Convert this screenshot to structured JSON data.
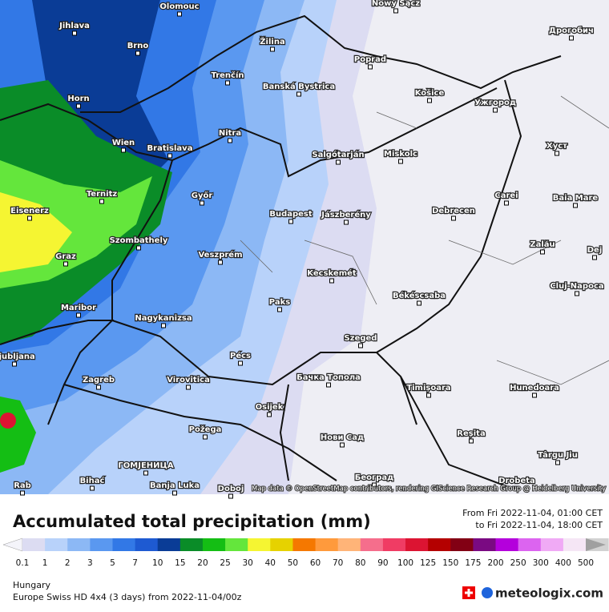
{
  "map": {
    "cities": [
      "Olomouc",
      "Nowy Sącz",
      "Jihlava",
      "Brno",
      "Žilina",
      "Дрогобич",
      "Poprad",
      "Trenčín",
      "Banská Bystrica",
      "Horn",
      "Košice",
      "Ужгород",
      "Nitra",
      "Wien",
      "Bratislava",
      "Salgótarján",
      "Miskolc",
      "Хуст",
      "Ternitz",
      "Győr",
      "Carei",
      "Baia Mare",
      "Eisenerz",
      "Budapest",
      "Jászberény",
      "Debrecen",
      "Szombathely",
      "Zalău",
      "Graz",
      "Veszprém",
      "Dej",
      "Kecskemét",
      "Cluj-Napoca",
      "Békéscsaba",
      "Paks",
      "Maribor",
      "Nagykanizsa",
      "Ljubljana",
      "Szeged",
      "Pécs",
      "Zagreb",
      "Virovitica",
      "Бачка Топола",
      "Timișoara",
      "Hunedoara",
      "Osijek",
      "Reșita",
      "Požega",
      "Нови Сад",
      "Târgu Jiu",
      "ГОМЈЕНИЦА",
      "Bihać",
      "Banja Luka",
      "Doboj",
      "Rab",
      "Београд",
      "Drobeta"
    ],
    "attribution": "Map data © OpenStreetMap contributors, rendering GIScience Research Group @ Heidelberg University"
  },
  "header": {
    "title": "Accumulated total precipitation (mm)",
    "from": "From Fri 2022-11-04, 01:00 CET",
    "to": "to Fri 2022-11-04, 18:00 CET"
  },
  "legend": {
    "values": [
      0.1,
      1,
      2,
      3,
      5,
      7,
      10,
      15,
      20,
      25,
      30,
      40,
      50,
      60,
      70,
      80,
      90,
      100,
      125,
      150,
      175,
      200,
      250,
      300,
      400,
      500
    ],
    "colors": [
      "#f4f4fa",
      "#dcdcf2",
      "#b8d2fa",
      "#8cb8f5",
      "#5a98f0",
      "#3278e6",
      "#1e5ad2",
      "#0a3c96",
      "#0a8c28",
      "#14be14",
      "#64e63c",
      "#f5f532",
      "#e6d200",
      "#f57800",
      "#ff9a3c",
      "#ffb478",
      "#f56e8c",
      "#f03c64",
      "#dc1432",
      "#b40000",
      "#820014",
      "#7a0a82",
      "#b400dc",
      "#dc64f0",
      "#f0aaf5",
      "#f5e6f5",
      "#d2d2d2",
      "#a0a0a0"
    ]
  },
  "footer": {
    "region": "Hungary",
    "model": "Europe Swiss HD 4x4 (3 days) from 2022-11-04/00z",
    "brand": "meteologix.com"
  }
}
